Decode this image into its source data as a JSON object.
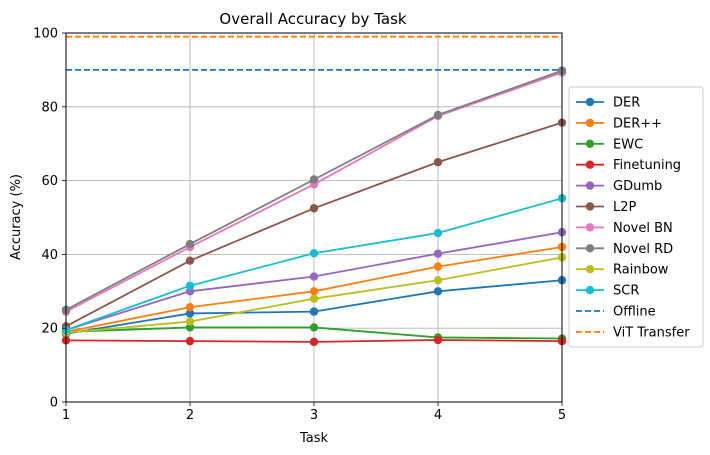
{
  "chart_data": {
    "type": "line",
    "title": "Overall Accuracy by Task",
    "xlabel": "Task",
    "ylabel": "Accuracy (%)",
    "xlim": [
      1,
      5
    ],
    "ylim": [
      0,
      100
    ],
    "x": [
      1,
      2,
      3,
      4,
      5
    ],
    "x_ticks": [
      "1",
      "2",
      "3",
      "4",
      "5"
    ],
    "y_ticks": [
      "0",
      "20",
      "40",
      "60",
      "80",
      "100"
    ],
    "grid": true,
    "legend_position": "right-outside",
    "series": [
      {
        "name": "DER",
        "color": "#1f77b4",
        "values": [
          18.5,
          24.0,
          24.5,
          30.0,
          33.0
        ]
      },
      {
        "name": "DER++",
        "color": "#ff7f0e",
        "values": [
          19.0,
          25.7,
          30.0,
          36.7,
          42.0
        ]
      },
      {
        "name": "EWC",
        "color": "#2ca02c",
        "values": [
          19.0,
          20.2,
          20.2,
          17.5,
          17.2
        ]
      },
      {
        "name": "Finetuning",
        "color": "#d62728",
        "values": [
          16.7,
          16.5,
          16.3,
          16.8,
          16.5
        ]
      },
      {
        "name": "GDumb",
        "color": "#9467bd",
        "values": [
          19.5,
          30.0,
          34.0,
          40.2,
          46.0
        ]
      },
      {
        "name": "L2P",
        "color": "#8c564b",
        "values": [
          20.5,
          38.3,
          52.5,
          65.0,
          75.7
        ]
      },
      {
        "name": "Novel BN",
        "color": "#e377c2",
        "values": [
          24.5,
          42.0,
          59.0,
          77.5,
          89.3
        ]
      },
      {
        "name": "Novel RD",
        "color": "#7f7f7f",
        "values": [
          25.0,
          42.8,
          60.3,
          77.8,
          89.8
        ]
      },
      {
        "name": "Rainbow",
        "color": "#bcbd22",
        "values": [
          18.8,
          21.8,
          28.0,
          33.0,
          39.2
        ]
      },
      {
        "name": "SCR",
        "color": "#17becf",
        "values": [
          19.5,
          31.5,
          40.3,
          45.8,
          55.2
        ]
      }
    ],
    "reference_lines": [
      {
        "name": "Offline",
        "color": "#1f77b4",
        "value": 90.0,
        "style": "dashed"
      },
      {
        "name": "ViT Transfer",
        "color": "#ff7f0e",
        "value": 99.0,
        "style": "dashed"
      }
    ]
  }
}
